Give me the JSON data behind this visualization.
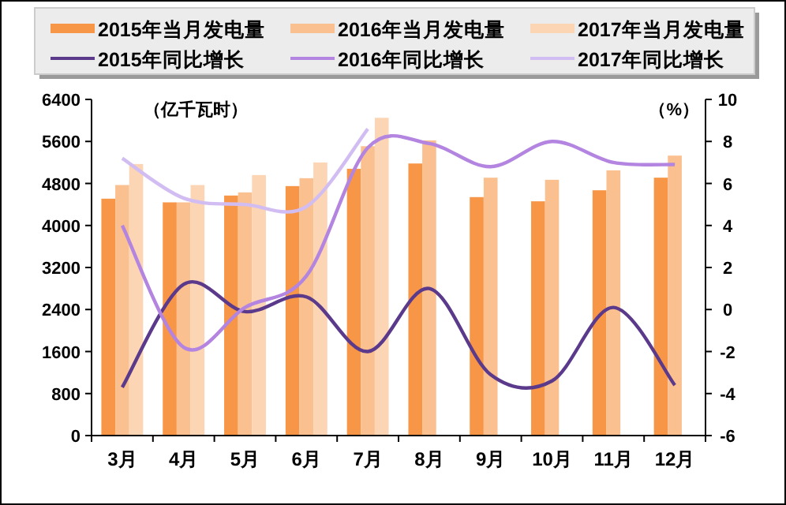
{
  "chart_data": {
    "type": "bar",
    "ylabel": "（亿千瓦时）",
    "y2label": "（%）",
    "categories": [
      "3月",
      "4月",
      "5月",
      "6月",
      "7月",
      "8月",
      "9月",
      "10月",
      "11月",
      "12月"
    ],
    "series": [
      {
        "name": "2015年当月发电量",
        "color": "#f79646",
        "values": [
          4510,
          4440,
          4570,
          4750,
          5080,
          5180,
          4540,
          4460,
          4670,
          4910
        ]
      },
      {
        "name": "2016年当月发电量",
        "color": "#fac090",
        "values": [
          4770,
          4440,
          4630,
          4900,
          5510,
          5620,
          4910,
          4870,
          5050,
          5330
        ]
      },
      {
        "name": "2017年当月发电量",
        "color": "#fcd5b4",
        "values": [
          5170,
          4770,
          4960,
          5200,
          6050,
          null,
          null,
          null,
          null,
          null
        ]
      },
      {
        "name": "2015年同比增长",
        "type": "line",
        "axis": "y2",
        "color": "#5b3a8c",
        "values": [
          -3.7,
          1.2,
          -0.1,
          0.6,
          -2.0,
          1.0,
          -3.1,
          -3.4,
          0.1,
          -3.6
        ]
      },
      {
        "name": "2016年同比增长",
        "type": "line",
        "axis": "y2",
        "color": "#b384e0",
        "values": [
          4.0,
          -1.8,
          0.1,
          1.6,
          7.7,
          7.9,
          6.8,
          8.0,
          7.0,
          6.9
        ]
      },
      {
        "name": "2017年同比增长",
        "type": "line",
        "axis": "y2",
        "color": "#d2bdf2",
        "values": [
          7.2,
          5.3,
          5.0,
          4.9,
          8.6,
          null,
          null,
          null,
          null,
          null
        ]
      }
    ],
    "ylim": [
      0,
      6400
    ],
    "yticks": [
      0,
      800,
      1600,
      2400,
      3200,
      4000,
      4800,
      5600,
      6400
    ],
    "y2lim": [
      -6,
      10
    ],
    "y2ticks": [
      -6,
      -4,
      -2,
      0,
      2,
      4,
      6,
      8,
      10
    ],
    "legend": "top",
    "grid": false
  }
}
